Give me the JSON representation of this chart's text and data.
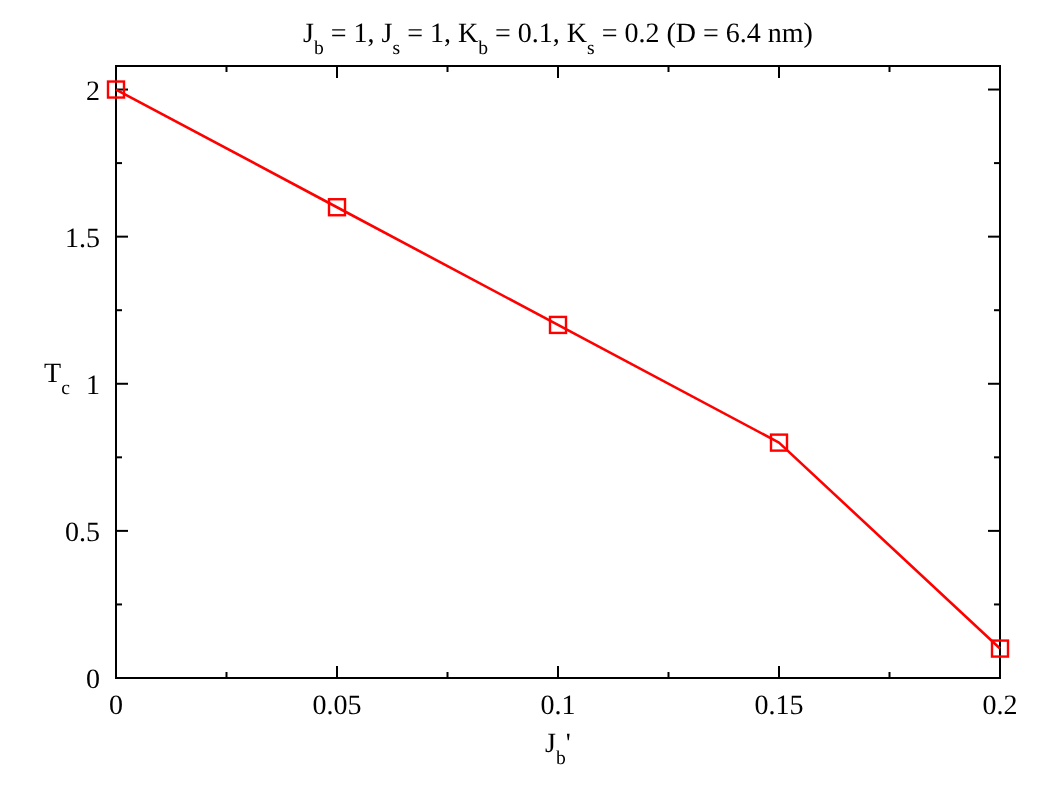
{
  "chart_data": {
    "type": "line",
    "title": "J$_{b}$ = 1, J$_{s}$ = 1, K$_{b}$ = 0.1, K$_{s}$ = 0.2  (D = 6.4 nm)",
    "xlabel": "J$_{b}$'",
    "ylabel": "T$_{c}$",
    "x": [
      0,
      0.05,
      0.1,
      0.15,
      0.2
    ],
    "series": [
      {
        "color": "#ff0000",
        "values": [
          2,
          1.6,
          1.2,
          0.8,
          0.1
        ]
      }
    ],
    "xlim": [
      0,
      0.2
    ],
    "ylim": [
      0,
      2.08
    ],
    "xticks": [
      0,
      {
        "value": 0.025,
        "label": null
      },
      0.05,
      {
        "value": 0.075,
        "label": null
      },
      0.1,
      {
        "value": 0.125,
        "label": null
      },
      0.15,
      {
        "value": 0.175,
        "label": null
      },
      0.2
    ],
    "yticks": [
      0,
      {
        "value": 0.25,
        "label": null
      },
      0.5,
      {
        "value": 0.75,
        "label": null
      },
      1,
      {
        "value": 1.25,
        "label": null
      },
      1.5,
      {
        "value": 1.75,
        "label": null
      },
      2
    ],
    "marker": "square",
    "line_style": "solid",
    "grid": false
  }
}
